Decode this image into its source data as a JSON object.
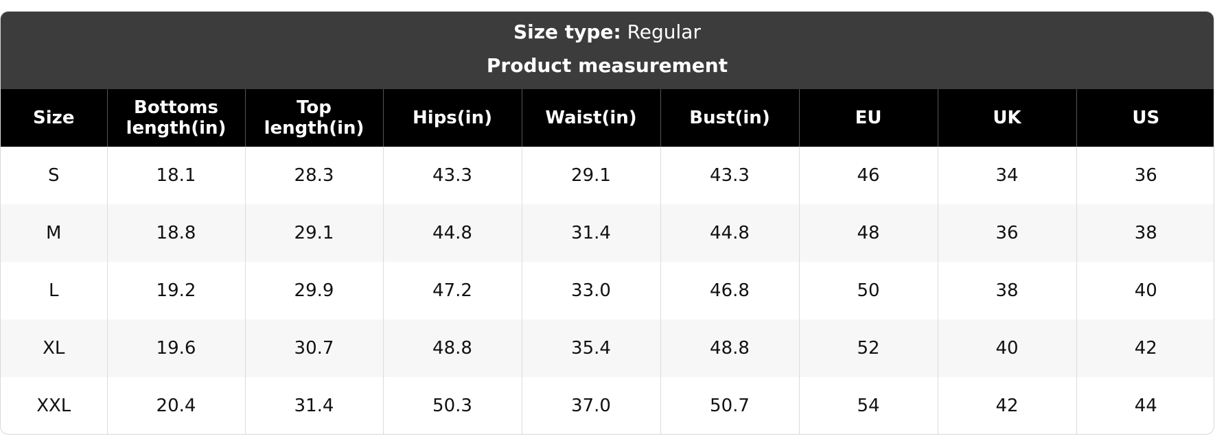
{
  "header": {
    "size_type_label": "Size type:",
    "size_type": "Regular",
    "title": "Product measurement"
  },
  "table": {
    "columns": [
      "Size",
      "Bottoms length(in)",
      "Top length(in)",
      "Hips(in)",
      "Waist(in)",
      "Bust(in)",
      "EU",
      "UK",
      "US"
    ],
    "rows": [
      [
        "S",
        "18.1",
        "28.3",
        "43.3",
        "29.1",
        "43.3",
        "46",
        "34",
        "36"
      ],
      [
        "M",
        "18.8",
        "29.1",
        "44.8",
        "31.4",
        "44.8",
        "48",
        "36",
        "38"
      ],
      [
        "L",
        "19.2",
        "29.9",
        "47.2",
        "33.0",
        "46.8",
        "50",
        "38",
        "40"
      ],
      [
        "XL",
        "19.6",
        "30.7",
        "48.8",
        "35.4",
        "48.8",
        "52",
        "40",
        "42"
      ],
      [
        "XXL",
        "20.4",
        "31.4",
        "50.3",
        "37.0",
        "50.7",
        "54",
        "42",
        "44"
      ]
    ]
  }
}
